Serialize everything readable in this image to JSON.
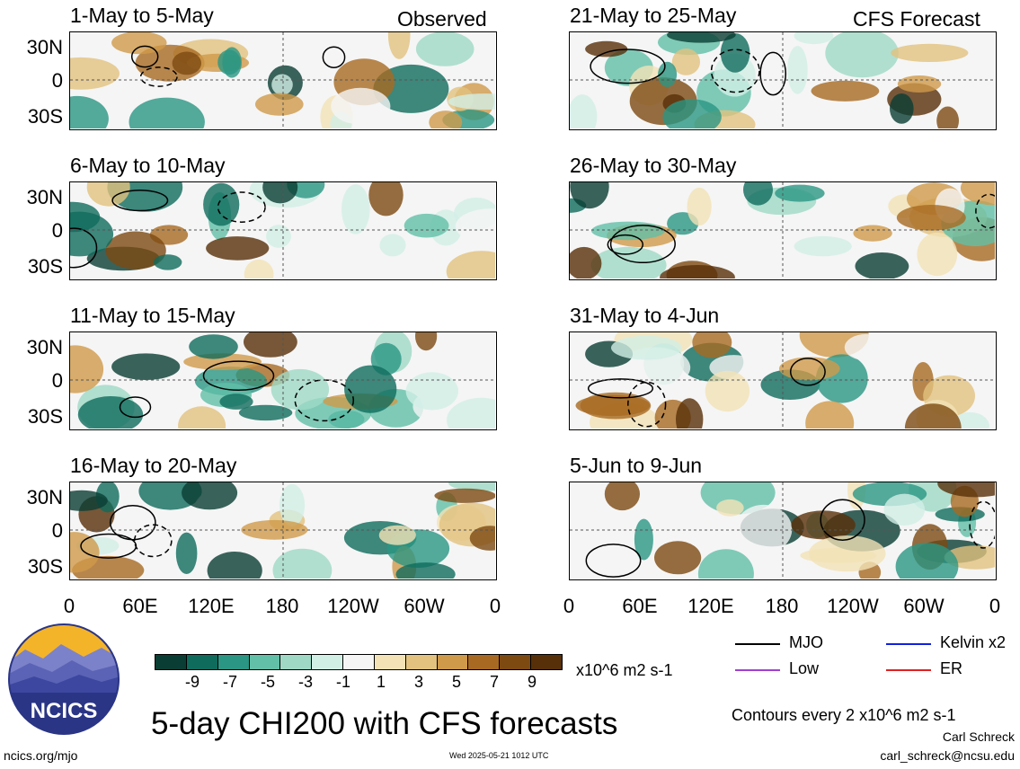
{
  "header": {
    "left_label": "Observed",
    "right_label": "CFS Forecast"
  },
  "observed_panels": [
    {
      "title": "1-May to 5-May"
    },
    {
      "title": "6-May to 10-May"
    },
    {
      "title": "11-May to 15-May"
    },
    {
      "title": "16-May to 20-May"
    }
  ],
  "forecast_panels": [
    {
      "title": "21-May to 25-May"
    },
    {
      "title": "26-May to 30-May"
    },
    {
      "title": "31-May to 4-Jun"
    },
    {
      "title": "5-Jun to 9-Jun"
    }
  ],
  "lat_ticks": [
    "30N",
    "0",
    "30S"
  ],
  "lon_ticks": [
    "0",
    "60E",
    "120E",
    "180",
    "120W",
    "60W",
    "0"
  ],
  "colorbar": {
    "labels": [
      "-9",
      "-7",
      "-5",
      "-3",
      "-1",
      "1",
      "3",
      "5",
      "7",
      "9"
    ],
    "units": "x10^6 m2 s-1",
    "colors": [
      "#0a3d33",
      "#0f6b5c",
      "#2a9683",
      "#62bfa8",
      "#9fd9c6",
      "#d2efe6",
      "#f5f5f5",
      "#f3e2b6",
      "#e2c27e",
      "#cf9a4a",
      "#a86a22",
      "#7d4a12",
      "#573009"
    ]
  },
  "legend": {
    "mjo": "MJO",
    "kelvin": "Kelvin x2",
    "low": "Low",
    "er": "ER",
    "colors": {
      "mjo": "#000000",
      "kelvin": "#1020e0",
      "low": "#a040d0",
      "er": "#e02020"
    }
  },
  "logo_text": "NCICS",
  "main_title": "5-day CHI200 with CFS forecasts",
  "contours_note": "Contours every 2 x10^6 m2 s-1",
  "author": "Carl Schreck",
  "email": "carl_schreck@ncsu.edu",
  "site": "ncics.org/mjo",
  "timestamp": "Wed 2025-05-21 1012 UTC"
}
